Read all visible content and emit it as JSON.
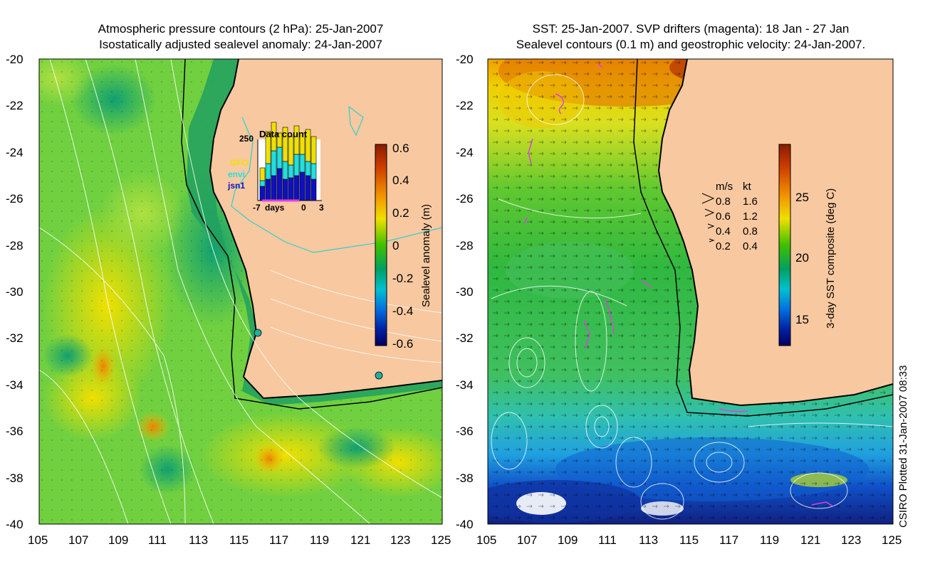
{
  "left_panel": {
    "title_line1": "Atmospheric pressure contours (2 hPa): 25-Jan-2007",
    "title_line2": "Isostatically adjusted sealevel anomaly: 24-Jan-2007",
    "y_ticks": [
      "-20",
      "-22",
      "-24",
      "-26",
      "-28",
      "-30",
      "-32",
      "-34",
      "-36",
      "-38",
      "-40"
    ],
    "x_ticks": [
      "105",
      "107",
      "109",
      "111",
      "113",
      "115",
      "117",
      "119",
      "121",
      "123",
      "125"
    ],
    "colorbar": {
      "label": "Sealevel anomaly (m)",
      "ticks": [
        "0.6",
        "0.4",
        "0.2",
        "0",
        "-0.2",
        "-0.4",
        "-0.6"
      ],
      "colors": [
        "#8b1a00",
        "#d04000",
        "#f08000",
        "#f8c000",
        "#f0f000",
        "#a0e000",
        "#40c000",
        "#00a050",
        "#00b0b0",
        "#00a0f0",
        "#0050d0",
        "#0010a0",
        "#000060"
      ]
    },
    "inset": {
      "title": "Data count",
      "ymax_label": "250",
      "x_label_left": "-7",
      "x_label_mid": "days",
      "x_label_zero": "0",
      "x_label_right": "3",
      "legend": [
        {
          "name": "GFO",
          "color": "#f0e000"
        },
        {
          "name": "envi",
          "color": "#20e0e0"
        },
        {
          "name": "jsn1",
          "color": "#1010c0"
        }
      ]
    }
  },
  "right_panel": {
    "title_line1": "SST: 25-Jan-2007. SVP drifters (magenta): 18 Jan - 27 Jan",
    "title_line2": "Sealevel contours (0.1 m) and geostrophic velocity: 24-Jan-2007.",
    "y_ticks": [
      "-20",
      "-22",
      "-24",
      "-26",
      "-28",
      "-30",
      "-32",
      "-34",
      "-36",
      "-38",
      "-40"
    ],
    "x_ticks": [
      "105",
      "107",
      "109",
      "111",
      "113",
      "115",
      "117",
      "119",
      "121",
      "123",
      "125"
    ],
    "colorbar": {
      "label": "3-day SST composite (deg C)",
      "ticks": [
        "25",
        "20",
        "15"
      ],
      "colors": [
        "#8b1a00",
        "#d04000",
        "#f08000",
        "#f8c000",
        "#f0f000",
        "#a0e000",
        "#40c000",
        "#00a050",
        "#00b0b0",
        "#00a0f0",
        "#0050d0",
        "#0010a0",
        "#000060"
      ]
    },
    "velocity_legend": {
      "header_ms": "m/s",
      "header_kt": "kt",
      "rows": [
        {
          "ms": "0.8",
          "kt": "1.6"
        },
        {
          "ms": "0.6",
          "kt": "1.2"
        },
        {
          "ms": "0.4",
          "kt": "0.8"
        },
        {
          "ms": "0.2",
          "kt": "0.4"
        }
      ]
    }
  },
  "credit": "CSIRO Plotted 31-Jan-2007 08:33",
  "colors": {
    "land": "#f8c8a0",
    "coast": "#000000",
    "contour": "#ffffff",
    "drifter": "#e040e0"
  }
}
